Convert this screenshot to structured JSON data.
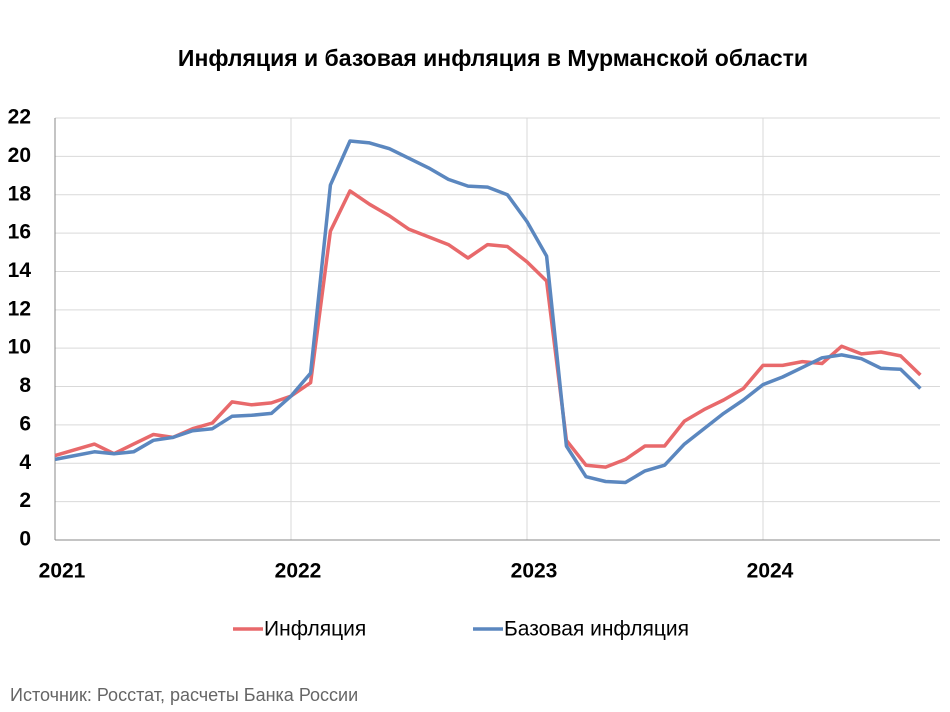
{
  "chart_data": {
    "type": "line",
    "title": "Инфляция и базовая инфляция в Мурманской области",
    "source": "Источник: Росстат, расчеты Банка России",
    "x": [
      2021,
      2021.083,
      2021.167,
      2021.25,
      2021.333,
      2021.417,
      2021.5,
      2021.583,
      2021.667,
      2021.75,
      2021.833,
      2021.917,
      2022,
      2022.083,
      2022.167,
      2022.25,
      2022.333,
      2022.417,
      2022.5,
      2022.583,
      2022.667,
      2022.75,
      2022.833,
      2022.917,
      2023,
      2023.083,
      2023.167,
      2023.25,
      2023.333,
      2023.417,
      2023.5,
      2023.583,
      2023.667,
      2023.75,
      2023.833,
      2023.917,
      2024,
      2024.083,
      2024.167,
      2024.25,
      2024.333,
      2024.417,
      2024.5,
      2024.583,
      2024.667
    ],
    "series": [
      {
        "name": "Инфляция",
        "color": "#e8696b",
        "values": [
          4.4,
          4.7,
          5.0,
          4.5,
          5.0,
          5.5,
          5.35,
          5.8,
          6.1,
          7.2,
          7.05,
          7.15,
          7.5,
          8.2,
          16.1,
          18.2,
          17.5,
          16.9,
          16.2,
          15.8,
          15.4,
          14.7,
          15.4,
          15.3,
          14.5,
          13.5,
          5.2,
          3.9,
          3.8,
          4.2,
          4.9,
          4.9,
          6.2,
          6.8,
          7.3,
          7.9,
          9.1,
          9.1,
          9.3,
          9.2,
          10.1,
          9.7,
          9.8,
          9.6,
          8.6
        ]
      },
      {
        "name": "Базовая инфляция",
        "color": "#5b87bf",
        "values": [
          4.2,
          4.4,
          4.6,
          4.5,
          4.6,
          5.2,
          5.35,
          5.7,
          5.8,
          6.45,
          6.5,
          6.6,
          7.5,
          8.7,
          18.5,
          20.8,
          20.7,
          20.4,
          19.9,
          19.4,
          18.8,
          18.45,
          18.4,
          18.0,
          16.6,
          14.8,
          4.9,
          3.3,
          3.05,
          3.0,
          3.6,
          3.9,
          5.0,
          5.8,
          6.6,
          7.3,
          8.1,
          8.5,
          9.0,
          9.5,
          9.65,
          9.45,
          8.95,
          8.9,
          7.9
        ]
      }
    ],
    "xlim": [
      2021,
      2024.75
    ],
    "xticks": [
      2021,
      2022,
      2023,
      2024
    ],
    "ylim": [
      0,
      22
    ],
    "yticks": [
      0,
      2,
      4,
      6,
      8,
      10,
      12,
      14,
      16,
      18,
      20,
      22
    ],
    "grid": true,
    "legend": "bottom"
  }
}
